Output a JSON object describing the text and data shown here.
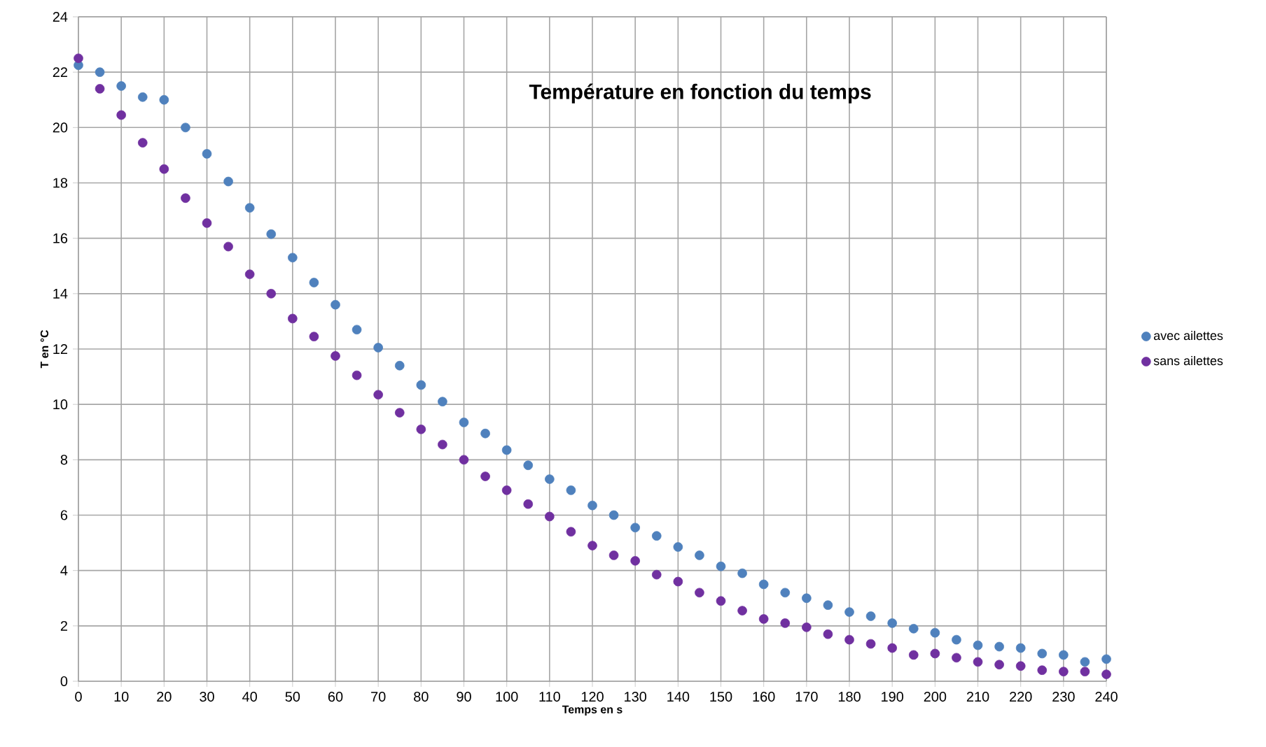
{
  "chart_data": {
    "type": "scatter",
    "title": "Température en fonction du temps",
    "xlabel": "Temps en s",
    "ylabel": "T en °C",
    "x": [
      0,
      5,
      10,
      15,
      20,
      25,
      30,
      35,
      40,
      45,
      50,
      55,
      60,
      65,
      70,
      75,
      80,
      85,
      90,
      95,
      100,
      105,
      110,
      115,
      120,
      125,
      130,
      135,
      140,
      145,
      150,
      155,
      160,
      165,
      170,
      175,
      180,
      185,
      190,
      195,
      200,
      205,
      210,
      215,
      220,
      225,
      230,
      235,
      240
    ],
    "series": [
      {
        "name": "avec ailettes",
        "color": "#4f81bd",
        "values": [
          22.25,
          22.0,
          21.5,
          21.1,
          21.0,
          20.0,
          19.05,
          18.05,
          17.1,
          16.15,
          15.3,
          14.4,
          13.6,
          12.7,
          12.05,
          11.4,
          10.7,
          10.1,
          9.35,
          8.95,
          8.35,
          7.8,
          7.3,
          6.9,
          6.35,
          6.0,
          5.55,
          5.25,
          4.85,
          4.55,
          4.15,
          3.9,
          3.5,
          3.2,
          3.0,
          2.75,
          2.5,
          2.35,
          2.1,
          1.9,
          1.75,
          1.5,
          1.3,
          1.25,
          1.2,
          1.0,
          0.95,
          0.7,
          0.8
        ]
      },
      {
        "name": "sans ailettes",
        "color": "#7030a0",
        "values": [
          22.5,
          21.4,
          20.45,
          19.45,
          18.5,
          17.45,
          16.55,
          15.7,
          14.7,
          14.0,
          13.1,
          12.45,
          11.75,
          11.05,
          10.35,
          9.7,
          9.1,
          8.55,
          8.0,
          7.4,
          6.9,
          6.4,
          5.95,
          5.4,
          4.9,
          4.55,
          4.35,
          3.85,
          3.6,
          3.2,
          2.9,
          2.55,
          2.25,
          2.1,
          1.95,
          1.7,
          1.5,
          1.35,
          1.2,
          0.95,
          1.0,
          0.85,
          0.7,
          0.6,
          0.55,
          0.4,
          0.35,
          0.35,
          0.25
        ]
      }
    ],
    "xlim": [
      0,
      240
    ],
    "xticks": [
      0,
      10,
      20,
      30,
      40,
      50,
      60,
      70,
      80,
      90,
      100,
      110,
      120,
      130,
      140,
      150,
      160,
      170,
      180,
      190,
      200,
      210,
      220,
      230,
      240
    ],
    "ylim": [
      0,
      24
    ],
    "yticks": [
      0,
      2,
      4,
      6,
      8,
      10,
      12,
      14,
      16,
      18,
      20,
      22,
      24
    ],
    "grid": true,
    "legend": "right",
    "marker": "circle"
  }
}
